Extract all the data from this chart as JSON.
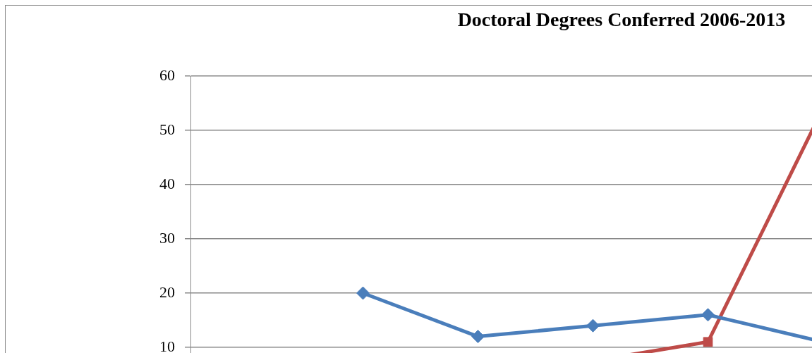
{
  "chart_data": {
    "type": "line",
    "title": "Doctoral Degrees Conferred 2006-2013",
    "categories": [
      null,
      null,
      null,
      null,
      null,
      null,
      null,
      null
    ],
    "series": [
      {
        "color": "#4a7ebb",
        "marker": "diamond",
        "values": [
          null,
          20,
          12,
          14,
          16,
          11,
          null,
          null
        ]
      },
      {
        "color": "#be4b48",
        "marker": "square",
        "values": [
          null,
          null,
          null,
          7.5,
          11,
          54,
          null,
          null
        ]
      }
    ],
    "ylim": [
      0,
      60
    ],
    "yticks": [
      10,
      20,
      30,
      40,
      50,
      60
    ],
    "grid": "y",
    "legend": false
  }
}
